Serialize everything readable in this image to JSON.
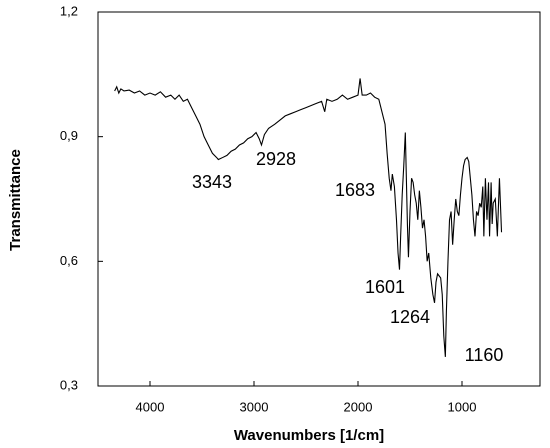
{
  "chart_data": {
    "type": "line",
    "xlabel": "Wavenumbers [1/cm]",
    "ylabel": "Transmittance",
    "color": "#000000",
    "xlim": [
      4500,
      250
    ],
    "xticks": [
      4000,
      3000,
      2000,
      1000
    ],
    "ylim": [
      0.3,
      1.2
    ],
    "yticks": [
      {
        "value": 0.3,
        "label": "0,3"
      },
      {
        "value": 0.6,
        "label": "0,6"
      },
      {
        "value": 0.9,
        "label": "0,9"
      },
      {
        "value": 1.2,
        "label": "1,2"
      }
    ],
    "annotations": [
      "3343",
      "2928",
      "1683",
      "1601",
      "1264",
      "1160"
    ],
    "x": [
      4340,
      4320,
      4300,
      4280,
      4250,
      4200,
      4150,
      4100,
      4050,
      4000,
      3950,
      3900,
      3850,
      3800,
      3760,
      3720,
      3680,
      3640,
      3600,
      3560,
      3520,
      3480,
      3440,
      3400,
      3360,
      3343,
      3300,
      3260,
      3220,
      3180,
      3140,
      3100,
      3060,
      3020,
      2980,
      2950,
      2928,
      2900,
      2860,
      2800,
      2750,
      2700,
      2650,
      2600,
      2550,
      2500,
      2450,
      2400,
      2350,
      2320,
      2300,
      2250,
      2200,
      2150,
      2100,
      2050,
      2000,
      1980,
      1960,
      1920,
      1880,
      1840,
      1800,
      1770,
      1740,
      1720,
      1700,
      1683,
      1670,
      1650,
      1630,
      1615,
      1601,
      1590,
      1575,
      1560,
      1545,
      1535,
      1525,
      1515,
      1500,
      1485,
      1470,
      1455,
      1440,
      1425,
      1410,
      1395,
      1380,
      1365,
      1350,
      1335,
      1320,
      1300,
      1280,
      1264,
      1250,
      1235,
      1220,
      1205,
      1190,
      1175,
      1160,
      1150,
      1135,
      1120,
      1105,
      1090,
      1075,
      1060,
      1045,
      1030,
      1015,
      1000,
      985,
      970,
      950,
      935,
      920,
      905,
      890,
      875,
      860,
      845,
      830,
      815,
      800,
      790,
      775,
      760,
      745,
      735,
      720,
      710,
      700,
      680,
      660,
      640,
      620
    ],
    "values": [
      1.01,
      1.02,
      1.005,
      1.015,
      1.01,
      1.012,
      1.005,
      1.01,
      1.0,
      1.005,
      1.0,
      1.008,
      0.995,
      1.0,
      0.99,
      1.0,
      0.985,
      0.99,
      0.97,
      0.95,
      0.93,
      0.9,
      0.88,
      0.86,
      0.85,
      0.845,
      0.85,
      0.855,
      0.865,
      0.87,
      0.88,
      0.885,
      0.895,
      0.9,
      0.91,
      0.895,
      0.88,
      0.905,
      0.92,
      0.93,
      0.94,
      0.95,
      0.955,
      0.96,
      0.965,
      0.97,
      0.975,
      0.98,
      0.985,
      0.96,
      0.99,
      0.985,
      0.99,
      1.0,
      0.99,
      0.995,
      1.0,
      1.04,
      1.0,
      1.0,
      1.005,
      0.995,
      0.99,
      0.96,
      0.93,
      0.86,
      0.8,
      0.77,
      0.81,
      0.78,
      0.7,
      0.62,
      0.58,
      0.66,
      0.76,
      0.83,
      0.91,
      0.8,
      0.69,
      0.61,
      0.72,
      0.8,
      0.79,
      0.76,
      0.74,
      0.7,
      0.77,
      0.73,
      0.68,
      0.7,
      0.66,
      0.6,
      0.62,
      0.56,
      0.52,
      0.5,
      0.55,
      0.57,
      0.565,
      0.56,
      0.52,
      0.42,
      0.37,
      0.48,
      0.6,
      0.7,
      0.72,
      0.64,
      0.7,
      0.75,
      0.72,
      0.71,
      0.76,
      0.8,
      0.83,
      0.845,
      0.85,
      0.84,
      0.8,
      0.76,
      0.7,
      0.66,
      0.72,
      0.71,
      0.74,
      0.73,
      0.78,
      0.66,
      0.8,
      0.7,
      0.79,
      0.66,
      0.79,
      0.69,
      0.74,
      0.75,
      0.66,
      0.8,
      0.67
    ]
  }
}
